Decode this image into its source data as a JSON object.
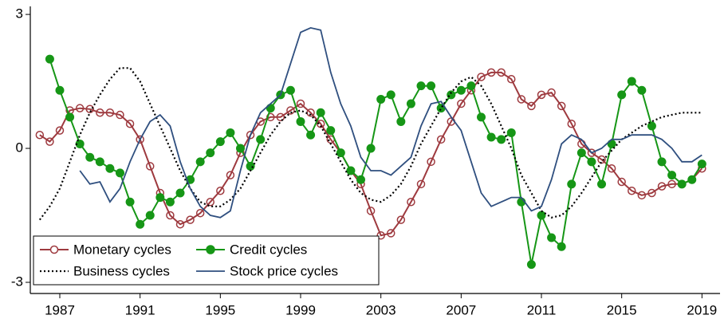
{
  "chart_data": {
    "type": "line",
    "x": [
      1986,
      1986.5,
      1987,
      1987.5,
      1988,
      1988.5,
      1989,
      1989.5,
      1990,
      1990.5,
      1991,
      1991.5,
      1992,
      1992.5,
      1993,
      1993.5,
      1994,
      1994.5,
      1995,
      1995.5,
      1996,
      1996.5,
      1997,
      1997.5,
      1998,
      1998.5,
      1999,
      1999.5,
      2000,
      2000.5,
      2001,
      2001.5,
      2002,
      2002.5,
      2003,
      2003.5,
      2004,
      2004.5,
      2005,
      2005.5,
      2006,
      2006.5,
      2007,
      2007.5,
      2008,
      2008.5,
      2009,
      2009.5,
      2010,
      2010.5,
      2011,
      2011.5,
      2012,
      2012.5,
      2013,
      2013.5,
      2014,
      2014.5,
      2015,
      2015.5,
      2016,
      2016.5,
      2017,
      2017.5,
      2018,
      2018.5,
      2019
    ],
    "series": [
      {
        "name": "Monetary cycles",
        "color": "#9e3a3f",
        "marker": "hollow-circle",
        "values": [
          0.3,
          0.15,
          0.4,
          0.85,
          0.9,
          0.88,
          0.8,
          0.8,
          0.75,
          0.55,
          0.2,
          -0.4,
          -1.0,
          -1.5,
          -1.7,
          -1.6,
          -1.45,
          -1.2,
          -0.95,
          -0.6,
          -0.1,
          0.3,
          0.6,
          0.7,
          0.7,
          0.85,
          1.0,
          0.8,
          0.55,
          0.2,
          -0.1,
          -0.5,
          -0.8,
          -1.4,
          -1.95,
          -1.9,
          -1.6,
          -1.2,
          -0.8,
          -0.3,
          0.2,
          0.6,
          1.0,
          1.3,
          1.6,
          1.7,
          1.7,
          1.55,
          1.1,
          0.95,
          1.2,
          1.25,
          0.95,
          0.55,
          0.1,
          -0.1,
          -0.25,
          -0.45,
          -0.75,
          -0.95,
          -1.05,
          -1.0,
          -0.85,
          -0.8,
          -0.8,
          -0.7,
          -0.45
        ]
      },
      {
        "name": "Credit cycles",
        "color": "#169616",
        "marker": "filled-circle",
        "values": [
          null,
          2.0,
          1.3,
          0.7,
          0.1,
          -0.2,
          -0.3,
          -0.45,
          -0.55,
          -1.2,
          -1.7,
          -1.5,
          -1.1,
          -1.2,
          -1.0,
          -0.7,
          -0.3,
          -0.1,
          0.15,
          0.35,
          0.0,
          -0.4,
          0.2,
          0.9,
          1.2,
          1.3,
          0.6,
          0.3,
          0.8,
          0.4,
          -0.1,
          -0.5,
          -0.7,
          0.0,
          1.1,
          1.2,
          0.6,
          1.0,
          1.4,
          1.4,
          0.9,
          1.2,
          1.3,
          1.4,
          0.7,
          0.25,
          0.2,
          0.35,
          -1.2,
          -2.6,
          -1.5,
          -2.0,
          -2.2,
          -0.8,
          -0.1,
          -0.3,
          -0.8,
          0.1,
          1.2,
          1.5,
          1.3,
          0.5,
          -0.3,
          -0.6,
          -0.8,
          -0.7,
          -0.35
        ]
      },
      {
        "name": "Business cycles",
        "color": "#000000",
        "dash": "dotted",
        "values": [
          -1.6,
          -1.3,
          -0.9,
          -0.3,
          0.3,
          0.8,
          1.2,
          1.55,
          1.8,
          1.8,
          1.5,
          1.0,
          0.5,
          0.0,
          -0.5,
          -0.9,
          -1.2,
          -1.3,
          -1.3,
          -1.15,
          -0.9,
          -0.5,
          -0.1,
          0.3,
          0.6,
          0.8,
          0.85,
          0.75,
          0.5,
          0.1,
          -0.3,
          -0.7,
          -1.0,
          -1.15,
          -1.2,
          -1.05,
          -0.8,
          -0.4,
          0.1,
          0.5,
          0.9,
          1.25,
          1.5,
          1.6,
          1.4,
          1.0,
          0.5,
          0.0,
          -0.6,
          -1.0,
          -1.4,
          -1.55,
          -1.5,
          -1.3,
          -1.0,
          -0.65,
          -0.3,
          -0.05,
          0.2,
          0.35,
          0.5,
          0.6,
          0.7,
          0.75,
          0.8,
          0.8,
          0.8
        ]
      },
      {
        "name": "Stock price cycles",
        "color": "#2f4f7f",
        "values": [
          null,
          null,
          null,
          null,
          -0.5,
          -0.8,
          -0.75,
          -1.2,
          -0.9,
          -0.3,
          0.2,
          0.6,
          0.75,
          0.5,
          -0.3,
          -0.9,
          -1.3,
          -1.5,
          -1.55,
          -1.4,
          -0.5,
          0.3,
          0.8,
          1.0,
          1.2,
          1.9,
          2.6,
          2.7,
          2.65,
          1.7,
          1.0,
          0.5,
          -0.2,
          -0.5,
          -0.5,
          -0.6,
          -0.4,
          -0.2,
          0.5,
          1.0,
          1.05,
          0.7,
          0.4,
          -0.3,
          -1.0,
          -1.3,
          -1.2,
          -1.1,
          -1.1,
          -1.4,
          -1.3,
          -0.7,
          0.1,
          0.3,
          0.2,
          -0.1,
          0.0,
          0.2,
          0.2,
          0.3,
          0.3,
          0.3,
          0.2,
          0.0,
          -0.3,
          -0.3,
          -0.15
        ]
      }
    ],
    "xlim": [
      1985.53,
      2019.9
    ],
    "ylim": [
      -3.25,
      3.18
    ],
    "xticks": [
      1987,
      1991,
      1995,
      1999,
      2003,
      2007,
      2011,
      2015,
      2019
    ],
    "yticks": [
      -3,
      0,
      3
    ],
    "legend": "bottom-left"
  }
}
